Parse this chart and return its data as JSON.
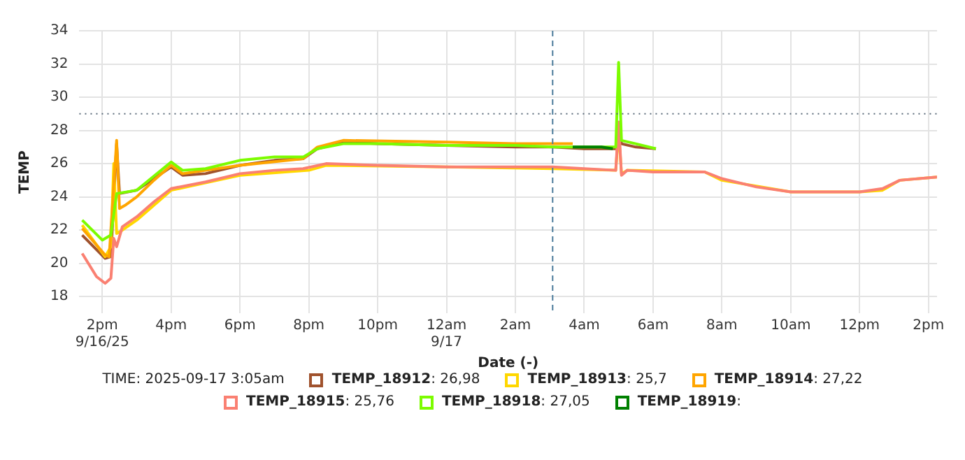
{
  "chart_data": {
    "type": "line",
    "xlabel": "Date (-)",
    "ylabel": "TEMP",
    "xlim": [
      "2025-09-16T13:20",
      "2025-09-17T14:15"
    ],
    "xticks": [
      {
        "value": "2025-09-16T14:00",
        "label": "2pm\n9/16/25"
      },
      {
        "value": "2025-09-16T16:00",
        "label": "4pm"
      },
      {
        "value": "2025-09-16T18:00",
        "label": "6pm"
      },
      {
        "value": "2025-09-16T20:00",
        "label": "8pm"
      },
      {
        "value": "2025-09-16T22:00",
        "label": "10pm"
      },
      {
        "value": "2025-09-17T00:00",
        "label": "12am\n9/17"
      },
      {
        "value": "2025-09-17T02:00",
        "label": "2am"
      },
      {
        "value": "2025-09-17T04:00",
        "label": "4am"
      },
      {
        "value": "2025-09-17T06:00",
        "label": "6am"
      },
      {
        "value": "2025-09-17T08:00",
        "label": "8am"
      },
      {
        "value": "2025-09-17T10:00",
        "label": "10am"
      },
      {
        "value": "2025-09-17T12:00",
        "label": "12pm"
      },
      {
        "value": "2025-09-17T14:00",
        "label": "2pm"
      }
    ],
    "ylim": [
      17,
      34
    ],
    "yticks": [
      18,
      20,
      22,
      24,
      26,
      28,
      30,
      32,
      34
    ],
    "grid": true,
    "legend": "bottom",
    "marker": "none",
    "line_style": "solid",
    "series": [
      {
        "name": "TEMP_18912",
        "color": "#a0522d",
        "x": [
          "2025-09-16T13:25",
          "2025-09-16T14:05",
          "2025-09-16T14:15",
          "2025-09-16T14:25",
          "2025-09-16T14:30",
          "2025-09-16T15:00",
          "2025-09-16T16:00",
          "2025-09-16T16:20",
          "2025-09-16T17:00",
          "2025-09-16T18:00",
          "2025-09-16T19:00",
          "2025-09-16T19:50",
          "2025-09-16T20:15",
          "2025-09-16T21:00",
          "2025-09-16T22:00",
          "2025-09-17T00:00",
          "2025-09-17T02:00",
          "2025-09-17T03:05",
          "2025-09-17T04:00",
          "2025-09-17T04:55",
          "2025-09-17T05:00",
          "2025-09-17T05:05",
          "2025-09-17T05:30",
          "2025-09-17T06:05"
        ],
        "values": [
          21.7,
          20.3,
          20.4,
          27.2,
          24.2,
          24.4,
          25.8,
          25.3,
          25.4,
          25.9,
          26.2,
          26.3,
          26.9,
          27.3,
          27.2,
          27.1,
          27.0,
          27.0,
          26.9,
          26.9,
          28.5,
          27.2,
          27.0,
          26.9
        ]
      },
      {
        "name": "TEMP_18913",
        "color": "#ffd700",
        "x": [
          "2025-09-16T13:25",
          "2025-09-16T14:05",
          "2025-09-16T14:15",
          "2025-09-16T14:20",
          "2025-09-16T14:25",
          "2025-09-16T14:35",
          "2025-09-16T15:00",
          "2025-09-16T16:00",
          "2025-09-16T18:00",
          "2025-09-16T20:00",
          "2025-09-16T20:30",
          "2025-09-17T00:00",
          "2025-09-17T03:05",
          "2025-09-17T04:55",
          "2025-09-17T05:00",
          "2025-09-17T05:05",
          "2025-09-17T05:15",
          "2025-09-17T07:30",
          "2025-09-17T08:00",
          "2025-09-17T10:00",
          "2025-09-17T12:00",
          "2025-09-17T12:40",
          "2025-09-17T13:10",
          "2025-09-17T14:15"
        ],
        "values": [
          22.3,
          20.4,
          21.0,
          26.0,
          21.8,
          22.0,
          22.6,
          24.4,
          25.3,
          25.6,
          25.9,
          25.8,
          25.7,
          25.6,
          28.0,
          25.4,
          25.6,
          25.5,
          25.0,
          24.3,
          24.3,
          24.4,
          25.0,
          25.2
        ]
      },
      {
        "name": "TEMP_18914",
        "color": "#ffa500",
        "x": [
          "2025-09-16T13:25",
          "2025-09-16T14:05",
          "2025-09-16T14:12",
          "2025-09-16T14:25",
          "2025-09-16T14:30",
          "2025-09-16T14:40",
          "2025-09-16T15:00",
          "2025-09-16T15:30",
          "2025-09-16T16:00",
          "2025-09-16T16:20",
          "2025-09-16T18:00",
          "2025-09-16T19:50",
          "2025-09-16T20:15",
          "2025-09-16T21:00",
          "2025-09-17T00:00",
          "2025-09-17T02:00",
          "2025-09-17T03:05",
          "2025-09-17T03:40"
        ],
        "values": [
          22.1,
          20.5,
          20.4,
          27.4,
          23.3,
          23.5,
          24.0,
          25.0,
          25.9,
          25.4,
          25.9,
          26.3,
          27.0,
          27.4,
          27.3,
          27.2,
          27.2,
          27.2
        ]
      },
      {
        "name": "TEMP_18915",
        "color": "#fa8072",
        "x": [
          "2025-09-16T13:25",
          "2025-09-16T13:50",
          "2025-09-16T14:05",
          "2025-09-16T14:15",
          "2025-09-16T14:20",
          "2025-09-16T14:25",
          "2025-09-16T14:35",
          "2025-09-16T15:00",
          "2025-09-16T15:30",
          "2025-09-16T16:00",
          "2025-09-16T17:00",
          "2025-09-16T18:00",
          "2025-09-16T19:00",
          "2025-09-16T19:50",
          "2025-09-16T20:30",
          "2025-09-16T22:00",
          "2025-09-17T00:00",
          "2025-09-17T02:00",
          "2025-09-17T03:05",
          "2025-09-17T04:00",
          "2025-09-17T04:55",
          "2025-09-17T05:00",
          "2025-09-17T05:05",
          "2025-09-17T05:15",
          "2025-09-17T06:00",
          "2025-09-17T07:30",
          "2025-09-17T08:00",
          "2025-09-17T09:00",
          "2025-09-17T10:00",
          "2025-09-17T11:00",
          "2025-09-17T12:00",
          "2025-09-17T12:40",
          "2025-09-17T13:10",
          "2025-09-17T14:15"
        ],
        "values": [
          20.6,
          19.2,
          18.8,
          19.1,
          21.5,
          21.0,
          22.2,
          22.8,
          23.7,
          24.5,
          24.9,
          25.4,
          25.6,
          25.7,
          26.0,
          25.9,
          25.8,
          25.8,
          25.8,
          25.7,
          25.6,
          28.5,
          25.3,
          25.6,
          25.5,
          25.5,
          25.1,
          24.6,
          24.3,
          24.3,
          24.3,
          24.5,
          25.0,
          25.2
        ]
      },
      {
        "name": "TEMP_18918",
        "color": "#7cfc00",
        "x": [
          "2025-09-16T13:25",
          "2025-09-16T14:00",
          "2025-09-16T14:15",
          "2025-09-16T14:25",
          "2025-09-16T15:00",
          "2025-09-16T16:00",
          "2025-09-16T16:20",
          "2025-09-16T17:00",
          "2025-09-16T18:00",
          "2025-09-16T19:00",
          "2025-09-16T19:50",
          "2025-09-16T20:15",
          "2025-09-16T21:00",
          "2025-09-16T22:00",
          "2025-09-17T00:00",
          "2025-09-17T02:00",
          "2025-09-17T03:05",
          "2025-09-17T04:00",
          "2025-09-17T04:55",
          "2025-09-17T05:00",
          "2025-09-17T05:05",
          "2025-09-17T05:30",
          "2025-09-17T06:05"
        ],
        "values": [
          22.6,
          21.4,
          21.7,
          24.2,
          24.4,
          26.1,
          25.6,
          25.7,
          26.2,
          26.4,
          26.4,
          26.9,
          27.2,
          27.2,
          27.1,
          27.1,
          27.0,
          27.0,
          27.0,
          32.1,
          27.4,
          27.2,
          26.9
        ]
      },
      {
        "name": "TEMP_18919",
        "color": "#008000",
        "x": [
          "2025-09-17T03:40",
          "2025-09-17T04:00",
          "2025-09-17T04:30",
          "2025-09-17T04:50"
        ],
        "values": [
          27.0,
          27.0,
          27.0,
          26.9
        ]
      }
    ],
    "ref_lines": [
      {
        "axis": "x",
        "value": "2025-09-17T03:05",
        "color": "#4a7a9a",
        "line_style": "dashed"
      },
      {
        "axis": "y",
        "value": 29,
        "color": "#5a6a7a",
        "line_style": "dotted"
      }
    ],
    "annotations": [
      "TIME: 2025-09-17 3:05am",
      ": 26,98",
      ": 25,7",
      ": 27,22",
      ": 25,76",
      ": 27,05",
      ":"
    ]
  }
}
